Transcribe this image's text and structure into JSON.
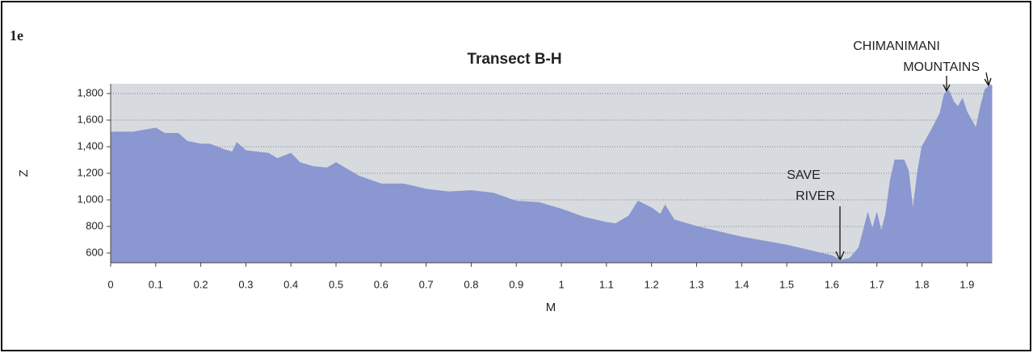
{
  "panel_label": "1e",
  "chart_data": {
    "type": "area",
    "title": "Transect B-H",
    "x_label": "M",
    "y_label": "Z",
    "color": "#8a97d0",
    "grid": true,
    "xlim": [
      0,
      1.955
    ],
    "ylim": [
      527,
      1873
    ],
    "xticks": [
      0,
      0.1,
      0.2,
      0.3,
      0.4,
      0.5,
      0.6,
      0.7,
      0.8,
      0.9,
      1,
      1.1,
      1.2,
      1.3,
      1.4,
      1.5,
      1.6,
      1.7,
      1.8,
      1.9
    ],
    "yticks": [
      600,
      800,
      {
        "value": 1000,
        "label": "1,000"
      },
      {
        "value": 1200,
        "label": "1,200"
      },
      {
        "value": 1400,
        "label": "1,400"
      },
      {
        "value": 1600,
        "label": "1,600"
      },
      {
        "value": 1800,
        "label": "1,800"
      }
    ],
    "x": [
      0,
      0.05,
      0.1,
      0.12,
      0.15,
      0.17,
      0.2,
      0.22,
      0.25,
      0.27,
      0.28,
      0.3,
      0.35,
      0.37,
      0.4,
      0.42,
      0.45,
      0.48,
      0.5,
      0.55,
      0.6,
      0.65,
      0.7,
      0.75,
      0.8,
      0.85,
      0.9,
      0.95,
      1.0,
      1.05,
      1.1,
      1.12,
      1.15,
      1.17,
      1.2,
      1.22,
      1.23,
      1.25,
      1.3,
      1.35,
      1.4,
      1.45,
      1.5,
      1.55,
      1.6,
      1.62,
      1.64,
      1.66,
      1.68,
      1.69,
      1.7,
      1.71,
      1.72,
      1.73,
      1.74,
      1.76,
      1.77,
      1.78,
      1.79,
      1.8,
      1.82,
      1.84,
      1.85,
      1.86,
      1.87,
      1.88,
      1.89,
      1.9,
      1.91,
      1.92,
      1.93,
      1.94,
      1.95,
      1.955
    ],
    "values": [
      1510,
      1510,
      1540,
      1500,
      1500,
      1440,
      1420,
      1420,
      1380,
      1360,
      1430,
      1370,
      1350,
      1310,
      1350,
      1280,
      1250,
      1240,
      1280,
      1180,
      1120,
      1120,
      1080,
      1060,
      1070,
      1050,
      990,
      980,
      930,
      870,
      830,
      820,
      880,
      990,
      940,
      890,
      960,
      850,
      800,
      760,
      720,
      690,
      660,
      620,
      580,
      545,
      560,
      640,
      900,
      780,
      900,
      760,
      900,
      1150,
      1300,
      1300,
      1220,
      920,
      1200,
      1400,
      1520,
      1650,
      1800,
      1820,
      1740,
      1700,
      1760,
      1660,
      1600,
      1540,
      1700,
      1830,
      1860,
      1860
    ],
    "annotations": [
      {
        "lines": [
          "SAVE",
          "RIVER"
        ]
      },
      {
        "lines": [
          "CHIMANIMANI",
          "MOUNTAINS"
        ]
      }
    ]
  }
}
